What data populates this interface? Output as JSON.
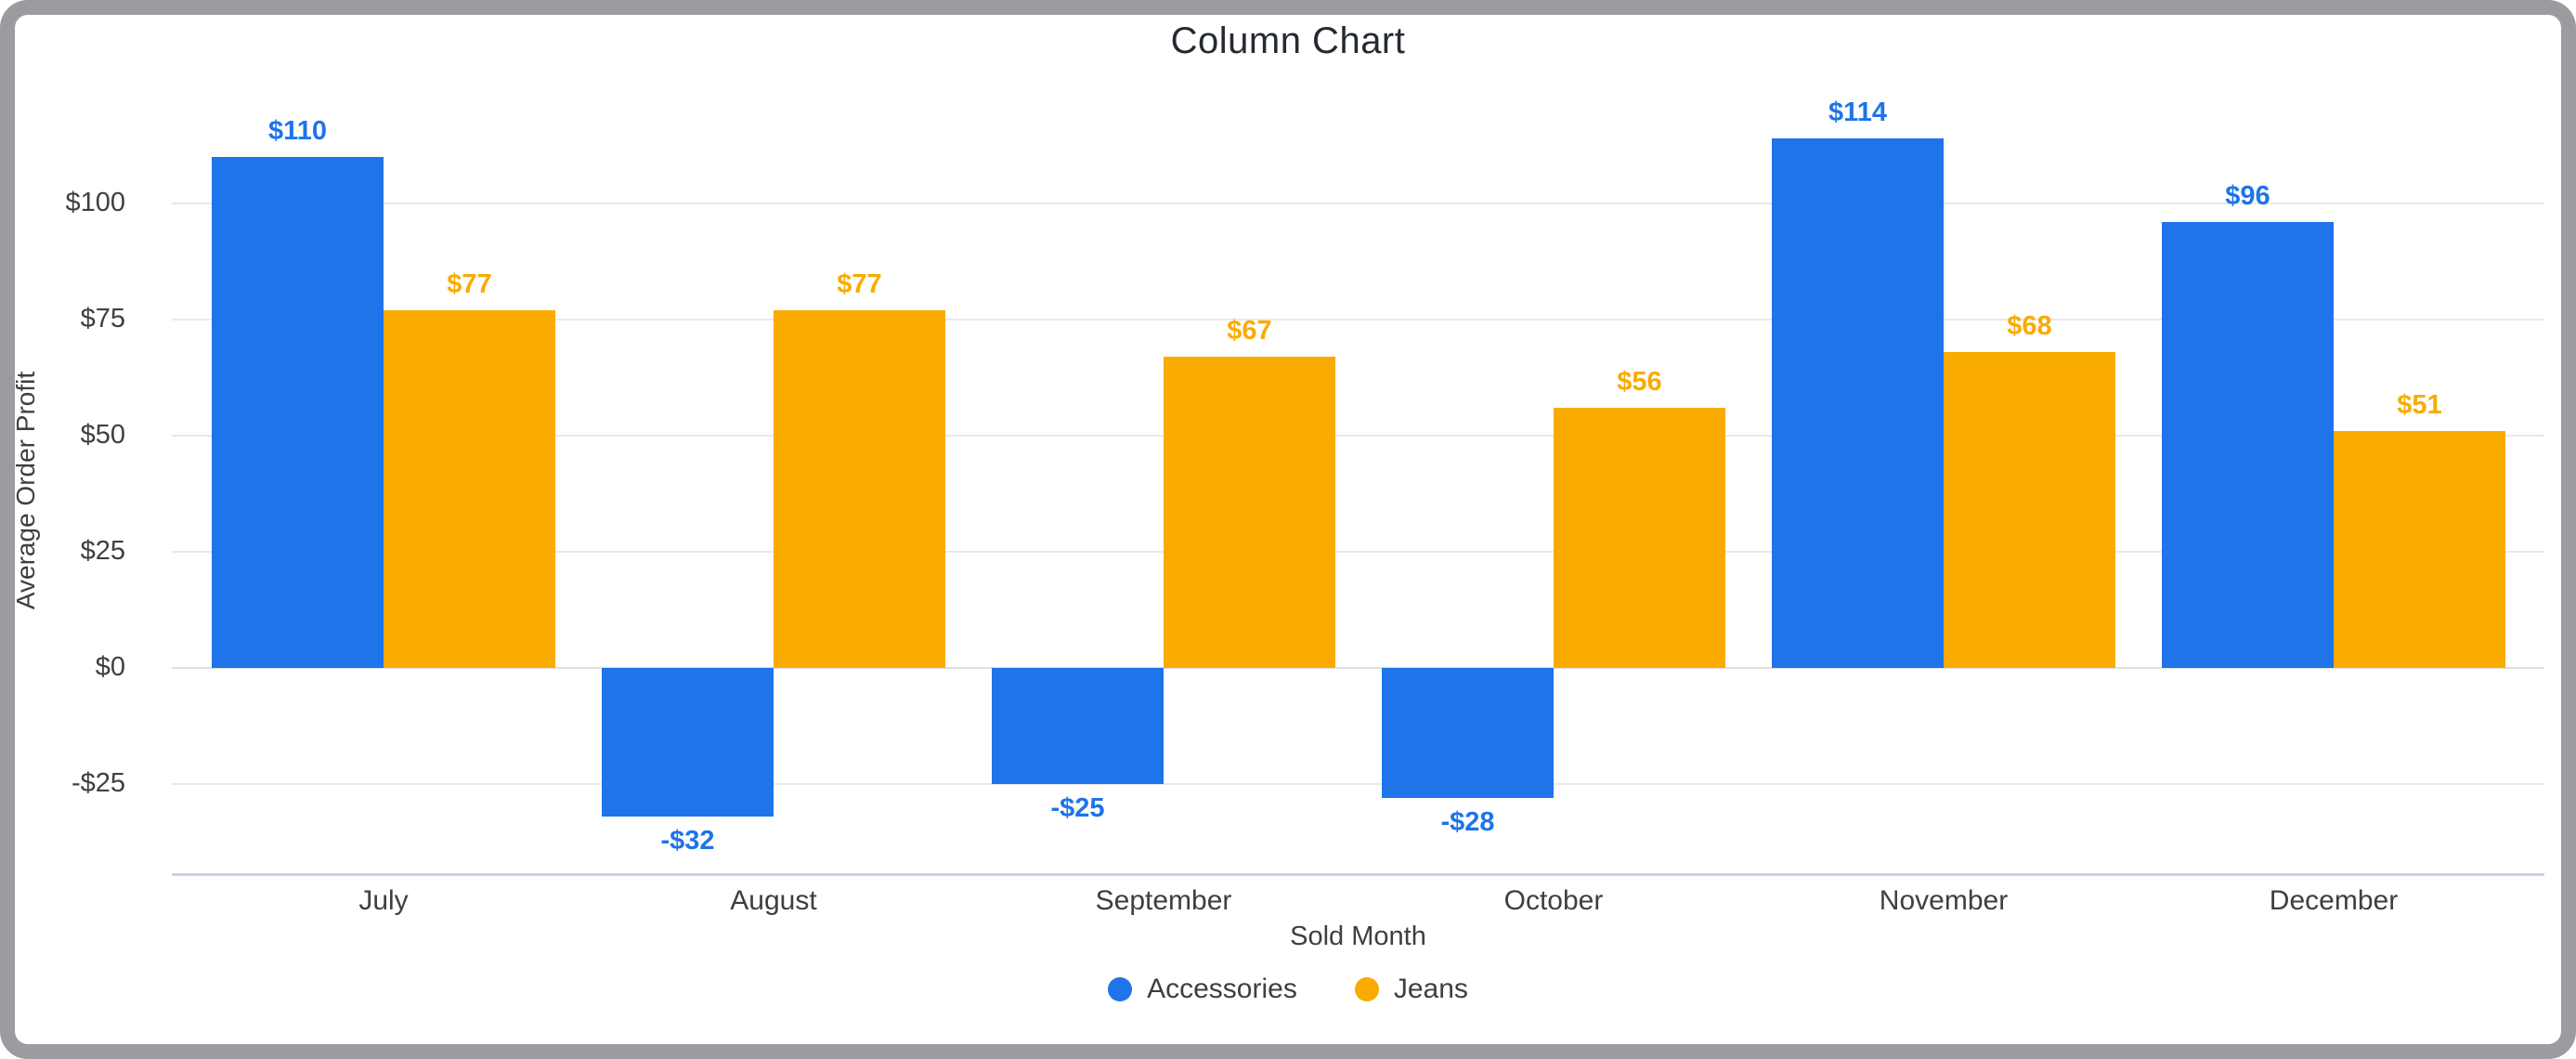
{
  "frame": {
    "border_color": "#9A9C9F",
    "background": "#FFFFFF"
  },
  "header": {
    "title": "Column Chart"
  },
  "axes": {
    "y_title": "Average Order Profit",
    "x_title": "Sold Month"
  },
  "colors": {
    "accessories": "#1E74E8",
    "jeans": "#F9AB00",
    "grid": "#E9E9E9",
    "zero_line": "#E0E0E0",
    "baseline": "#C5D1E8",
    "title_text": "#252A32",
    "axis_text": "#3C4043"
  },
  "chart_data": {
    "type": "bar",
    "title": "Column Chart",
    "xlabel": "Sold Month",
    "ylabel": "Average Order Profit",
    "categories": [
      "July",
      "August",
      "September",
      "October",
      "November",
      "December"
    ],
    "series": [
      {
        "name": "Accessories",
        "color": "#1E74E8",
        "values": [
          110,
          -32,
          -25,
          -28,
          114,
          96
        ],
        "labels": [
          "$110",
          "-$32",
          "-$25",
          "-$28",
          "$114",
          "$96"
        ]
      },
      {
        "name": "Jeans",
        "color": "#F9AB00",
        "values": [
          77,
          77,
          67,
          56,
          68,
          51
        ],
        "labels": [
          "$77",
          "$77",
          "$67",
          "$56",
          "$68",
          "$51"
        ]
      }
    ],
    "y_ticks": [
      {
        "value": 100,
        "label": "$100"
      },
      {
        "value": 75,
        "label": "$75"
      },
      {
        "value": 50,
        "label": "$50"
      },
      {
        "value": 25,
        "label": "$25"
      },
      {
        "value": 0,
        "label": "$0"
      },
      {
        "value": -25,
        "label": "-$25"
      }
    ],
    "ylim": [
      -44,
      122
    ],
    "grid": true,
    "legend_position": "bottom"
  },
  "legend": {
    "items": [
      {
        "label": "Accessories",
        "color": "#1E74E8"
      },
      {
        "label": "Jeans",
        "color": "#F9AB00"
      }
    ]
  }
}
